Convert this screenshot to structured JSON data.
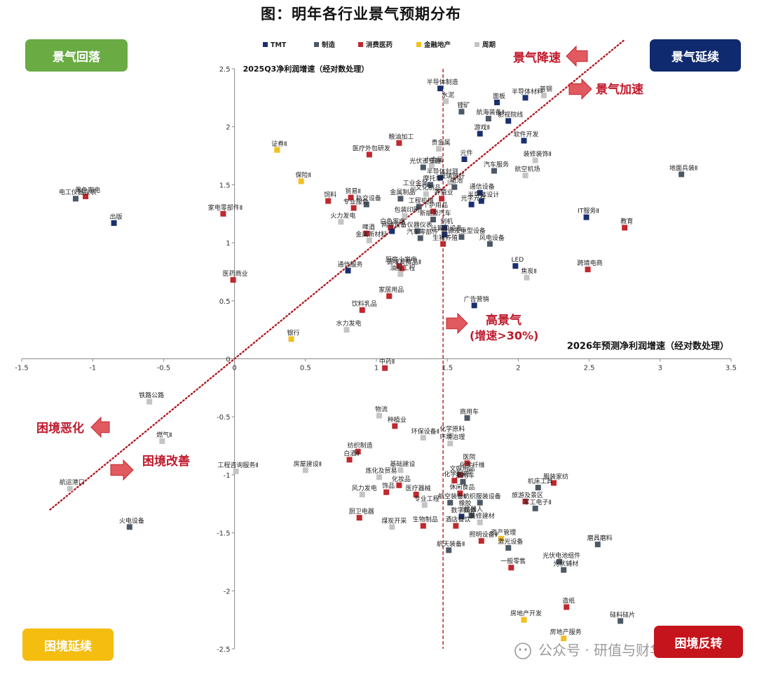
{
  "page_title": "图：明年各行业景气预期分布",
  "quadrants": {
    "top_left": "景气回落",
    "top_right": "景气延续",
    "bottom_left": "困境延续",
    "bottom_right": "困境反转"
  },
  "annotations": {
    "jingqi_jiangsu": "景气降速",
    "jingqi_jiasu": "景气加速",
    "gao_jingqi": "高景气",
    "gao_jingqi_sub": "(增速>30%)",
    "kunjing_ehua": "困境恶化",
    "kunjing_gaishan": "困境改善"
  },
  "watermark": "公众号 · 研值与财华",
  "colors": {
    "TMT": "#1a2f6e",
    "制造": "#4d5866",
    "消费医药": "#c0282e",
    "金融地产": "#f2bf1f",
    "周期": "#c4c4c4",
    "badge_green": "#6aab44",
    "badge_navy": "#0f2a6e",
    "badge_yellow": "#f5bd10",
    "badge_red": "#c5141b",
    "trend_line": "#b11c24"
  },
  "chart_data": {
    "type": "scatter",
    "xlabel": "2026年预测净利润增速（经对数处理）",
    "ylabel": "2025Q3净利润增速（经对数处理）",
    "xlim": [
      -1.5,
      3.5
    ],
    "ylim": [
      -2.5,
      2.5
    ],
    "xticks": [
      "-1.5",
      "-1",
      "-0.5",
      "0",
      "0.5",
      "1",
      "1.5",
      "2",
      "2.5",
      "3",
      "3.5"
    ],
    "yticks": [
      "2.5",
      "2",
      "1.5",
      "1",
      "0.5",
      "0",
      "-0.5",
      "-1",
      "-1.5",
      "-2",
      "-2.5"
    ],
    "legend": [
      "TMT",
      "制造",
      "消费医药",
      "金融地产",
      "周期"
    ],
    "legend_position": "top",
    "reference_line_x": 1.47,
    "diagonal": [
      [
        -1.3,
        -1.3
      ],
      [
        2.75,
        2.75
      ]
    ],
    "points": [
      {
        "name": "半导体制造",
        "x": 1.45,
        "y": 2.33,
        "g": "TMT"
      },
      {
        "name": "水泥",
        "x": 1.49,
        "y": 2.22,
        "g": "周期"
      },
      {
        "name": "面板",
        "x": 1.85,
        "y": 2.21,
        "g": "TMT"
      },
      {
        "name": "半导体材料",
        "x": 2.05,
        "y": 2.25,
        "g": "TMT"
      },
      {
        "name": "普钢",
        "x": 2.18,
        "y": 2.27,
        "g": "周期"
      },
      {
        "name": "锂矿",
        "x": 1.6,
        "y": 2.13,
        "g": "制造"
      },
      {
        "name": "航海装备Ⅱ",
        "x": 1.79,
        "y": 2.07,
        "g": "制造"
      },
      {
        "name": "影视院线",
        "x": 1.93,
        "y": 2.05,
        "g": "TMT"
      },
      {
        "name": "游戏Ⅱ",
        "x": 1.73,
        "y": 1.94,
        "g": "TMT"
      },
      {
        "name": "粮油加工",
        "x": 1.16,
        "y": 1.86,
        "g": "消费医药"
      },
      {
        "name": "证券Ⅱ",
        "x": 0.3,
        "y": 1.8,
        "g": "金融地产"
      },
      {
        "name": "贵金属",
        "x": 1.44,
        "y": 1.81,
        "g": "周期"
      },
      {
        "name": "医疗外包研发",
        "x": 0.95,
        "y": 1.76,
        "g": "消费医药"
      },
      {
        "name": "软件开发",
        "x": 2.04,
        "y": 1.88,
        "g": "TMT"
      },
      {
        "name": "元件",
        "x": 1.62,
        "y": 1.72,
        "g": "TMT"
      },
      {
        "name": "装修装饰Ⅱ",
        "x": 2.12,
        "y": 1.71,
        "g": "周期"
      },
      {
        "name": "光伏逆变器",
        "x": 1.33,
        "y": 1.65,
        "g": "制造"
      },
      {
        "name": "小金属",
        "x": 1.39,
        "y": 1.66,
        "g": "周期"
      },
      {
        "name": "汽车服务",
        "x": 1.83,
        "y": 1.62,
        "g": "制造"
      },
      {
        "name": "地面兵装Ⅱ",
        "x": 3.15,
        "y": 1.59,
        "g": "制造"
      },
      {
        "name": "保险Ⅱ",
        "x": 0.47,
        "y": 1.53,
        "g": "金融地产"
      },
      {
        "name": "半导体封测",
        "x": 1.45,
        "y": 1.56,
        "g": "TMT"
      },
      {
        "name": "航空机场",
        "x": 2.05,
        "y": 1.58,
        "g": "周期"
      },
      {
        "name": "摩托车",
        "x": 1.38,
        "y": 1.5,
        "g": "制造"
      },
      {
        "name": "玻璃玻纤",
        "x": 1.52,
        "y": 1.52,
        "g": "周期"
      },
      {
        "name": "工业金属",
        "x": 1.26,
        "y": 1.46,
        "g": "周期"
      },
      {
        "name": "电池",
        "x": 1.55,
        "y": 1.48,
        "g": "制造"
      },
      {
        "name": "黑色家电",
        "x": -1.05,
        "y": 1.4,
        "g": "消费医药"
      },
      {
        "name": "电工仪器仪表",
        "x": -1.12,
        "y": 1.38,
        "g": "制造"
      },
      {
        "name": "通信设备",
        "x": 1.73,
        "y": 1.43,
        "g": "TMT"
      },
      {
        "name": "金属制品",
        "x": 1.17,
        "y": 1.38,
        "g": "制造"
      },
      {
        "name": "文化制品",
        "x": 1.35,
        "y": 1.42,
        "g": "周期"
      },
      {
        "name": "贸易Ⅱ",
        "x": 0.82,
        "y": 1.39,
        "g": "消费医药"
      },
      {
        "name": "饲料",
        "x": 0.66,
        "y": 1.36,
        "g": "消费医药"
      },
      {
        "name": "半导体设计",
        "x": 1.74,
        "y": 1.36,
        "g": "TMT"
      },
      {
        "name": "养殖业",
        "x": 1.46,
        "y": 1.38,
        "g": "消费医药"
      },
      {
        "name": "家电零部件Ⅱ",
        "x": -0.08,
        "y": 1.25,
        "g": "消费医药"
      },
      {
        "name": "IT服务Ⅱ",
        "x": 2.48,
        "y": 1.22,
        "g": "TMT"
      },
      {
        "name": "轨交设备",
        "x": 0.93,
        "y": 1.33,
        "g": "制造"
      },
      {
        "name": "专业服务",
        "x": 0.84,
        "y": 1.3,
        "g": "消费医药"
      },
      {
        "name": "工程机械",
        "x": 1.3,
        "y": 1.31,
        "g": "制造"
      },
      {
        "name": "光学元件",
        "x": 1.67,
        "y": 1.33,
        "g": "TMT"
      },
      {
        "name": "出版",
        "x": -0.85,
        "y": 1.17,
        "g": "TMT"
      },
      {
        "name": "教育",
        "x": 2.75,
        "y": 1.13,
        "g": "消费医药"
      },
      {
        "name": "个护用品",
        "x": 1.4,
        "y": 1.27,
        "g": "消费医药"
      },
      {
        "name": "包装印刷",
        "x": 1.2,
        "y": 1.23,
        "g": "周期"
      },
      {
        "name": "新能源汽车",
        "x": 1.4,
        "y": 1.2,
        "g": "制造"
      },
      {
        "name": "火力发电",
        "x": 0.75,
        "y": 1.18,
        "g": "周期"
      },
      {
        "name": "白色家电",
        "x": 1.1,
        "y": 1.13,
        "g": "消费医药"
      },
      {
        "name": "刻机",
        "x": 1.48,
        "y": 1.13,
        "g": "TMT"
      },
      {
        "name": "啤酒",
        "x": 0.93,
        "y": 1.08,
        "g": "消费医药"
      },
      {
        "name": "网络设备",
        "x": 1.11,
        "y": 1.1,
        "g": "TMT"
      },
      {
        "name": "仪器仪表",
        "x": 1.29,
        "y": 1.1,
        "g": "制造"
      },
      {
        "name": "计算机设备",
        "x": 1.48,
        "y": 1.07,
        "g": "TMT"
      },
      {
        "name": "金属新材料",
        "x": 0.95,
        "y": 1.02,
        "g": "周期"
      },
      {
        "name": "汽车零部件",
        "x": 1.31,
        "y": 1.04,
        "g": "制造"
      },
      {
        "name": "能源及重型设备",
        "x": 1.6,
        "y": 1.05,
        "g": "制造"
      },
      {
        "name": "风电设备",
        "x": 1.8,
        "y": 0.99,
        "g": "制造"
      },
      {
        "name": "生猪养殖",
        "x": 1.47,
        "y": 0.99,
        "g": "消费医药"
      },
      {
        "name": "厨房小家电",
        "x": 1.16,
        "y": 0.8,
        "g": "消费医药"
      },
      {
        "name": "调味发酵品Ⅱ",
        "x": 1.18,
        "y": 0.78,
        "g": "消费医药"
      },
      {
        "name": "LED",
        "x": 1.98,
        "y": 0.8,
        "g": "TMT"
      },
      {
        "name": "跨境电商",
        "x": 2.49,
        "y": 0.77,
        "g": "消费医药"
      },
      {
        "name": "通信服务",
        "x": 0.8,
        "y": 0.76,
        "g": "TMT"
      },
      {
        "name": "焦炭Ⅱ",
        "x": 2.06,
        "y": 0.7,
        "g": "周期"
      },
      {
        "name": "医药商业",
        "x": -0.01,
        "y": 0.68,
        "g": "消费医药"
      },
      {
        "name": "油服工程",
        "x": 1.17,
        "y": 0.73,
        "g": "周期"
      },
      {
        "name": "家居用品",
        "x": 1.09,
        "y": 0.54,
        "g": "消费医药"
      },
      {
        "name": "广告营销",
        "x": 1.69,
        "y": 0.46,
        "g": "TMT"
      },
      {
        "name": "饮料乳品",
        "x": 0.9,
        "y": 0.42,
        "g": "消费医药"
      },
      {
        "name": "水力发电",
        "x": 0.79,
        "y": 0.25,
        "g": "周期"
      },
      {
        "name": "银行",
        "x": 0.4,
        "y": 0.17,
        "g": "金融地产"
      },
      {
        "name": "中药Ⅱ",
        "x": 1.06,
        "y": -0.08,
        "g": "消费医药"
      },
      {
        "name": "铁路公路",
        "x": -0.6,
        "y": -0.37,
        "g": "周期"
      },
      {
        "name": "物流",
        "x": 1.02,
        "y": -0.49,
        "g": "周期"
      },
      {
        "name": "商用车",
        "x": 1.64,
        "y": -0.51,
        "g": "制造"
      },
      {
        "name": "种植业",
        "x": 1.13,
        "y": -0.58,
        "g": "消费医药"
      },
      {
        "name": "环保设备Ⅱ",
        "x": 1.33,
        "y": -0.68,
        "g": "周期"
      },
      {
        "name": "化学原料",
        "x": 1.52,
        "y": -0.66,
        "g": "周期"
      },
      {
        "name": "燃气Ⅱ",
        "x": -0.51,
        "y": -0.71,
        "g": "周期"
      },
      {
        "name": "环境治理",
        "x": 1.52,
        "y": -0.73,
        "g": "周期"
      },
      {
        "name": "纺织制造",
        "x": 0.87,
        "y": -0.8,
        "g": "消费医药"
      },
      {
        "name": "白酒Ⅱ",
        "x": 0.81,
        "y": -0.87,
        "g": "消费医药"
      },
      {
        "name": "医院",
        "x": 1.64,
        "y": -0.9,
        "g": "消费医药"
      },
      {
        "name": "工程咨询服务Ⅱ",
        "x": 0.01,
        "y": -0.97,
        "g": "周期"
      },
      {
        "name": "房屋建设Ⅱ",
        "x": 0.5,
        "y": -0.96,
        "g": "周期"
      },
      {
        "name": "基础建设",
        "x": 1.17,
        "y": -0.96,
        "g": "周期"
      },
      {
        "name": "化学纤维",
        "x": 1.66,
        "y": -0.97,
        "g": "周期"
      },
      {
        "name": "文娱用品",
        "x": 1.59,
        "y": -1.0,
        "g": "消费医药"
      },
      {
        "name": "炼化及贸易",
        "x": 1.02,
        "y": -1.02,
        "g": "周期"
      },
      {
        "name": "化学制药",
        "x": 1.55,
        "y": -1.05,
        "g": "消费医药"
      },
      {
        "name": "乘用车",
        "x": 1.61,
        "y": -1.06,
        "g": "制造"
      },
      {
        "name": "服装家纺",
        "x": 2.25,
        "y": -1.07,
        "g": "消费医药"
      },
      {
        "name": "航运港口",
        "x": -1.16,
        "y": -1.12,
        "g": "周期"
      },
      {
        "name": "化妆品",
        "x": 1.16,
        "y": -1.09,
        "g": "消费医药"
      },
      {
        "name": "机床工具",
        "x": 2.14,
        "y": -1.11,
        "g": "制造"
      },
      {
        "name": "饰品",
        "x": 1.07,
        "y": -1.15,
        "g": "消费医药"
      },
      {
        "name": "风力发电",
        "x": 0.9,
        "y": -1.17,
        "g": "周期"
      },
      {
        "name": "医疗器械",
        "x": 1.28,
        "y": -1.17,
        "g": "消费医药"
      },
      {
        "name": "休闲食品",
        "x": 1.59,
        "y": -1.16,
        "g": "消费医药"
      },
      {
        "name": "旅游及景区",
        "x": 2.05,
        "y": -1.23,
        "g": "消费医药"
      },
      {
        "name": "纺织服装设备",
        "x": 1.73,
        "y": -1.24,
        "g": "制造"
      },
      {
        "name": "专业工程",
        "x": 1.34,
        "y": -1.26,
        "g": "周期"
      },
      {
        "name": "航空装备Ⅱ",
        "x": 1.52,
        "y": -1.24,
        "g": "制造"
      },
      {
        "name": "军工电子Ⅱ",
        "x": 2.12,
        "y": -1.29,
        "g": "制造"
      },
      {
        "name": "橡胶",
        "x": 1.61,
        "y": -1.3,
        "g": "周期"
      },
      {
        "name": "机器人",
        "x": 1.67,
        "y": -1.35,
        "g": "制造"
      },
      {
        "name": "数字媒体",
        "x": 1.6,
        "y": -1.36,
        "g": "TMT"
      },
      {
        "name": "厨卫电器",
        "x": 0.88,
        "y": -1.37,
        "g": "消费医药"
      },
      {
        "name": "装修建材",
        "x": 1.73,
        "y": -1.41,
        "g": "周期"
      },
      {
        "name": "煤炭开采",
        "x": 1.11,
        "y": -1.45,
        "g": "周期"
      },
      {
        "name": "火电设备",
        "x": -0.74,
        "y": -1.45,
        "g": "制造"
      },
      {
        "name": "生物制品",
        "x": 1.33,
        "y": -1.44,
        "g": "消费医药"
      },
      {
        "name": "酒店餐饮",
        "x": 1.56,
        "y": -1.44,
        "g": "消费医药"
      },
      {
        "name": "照明设备Ⅱ",
        "x": 1.74,
        "y": -1.57,
        "g": "消费医药"
      },
      {
        "name": "资产管理",
        "x": 1.88,
        "y": -1.55,
        "g": "金融地产"
      },
      {
        "name": "磨具磨料",
        "x": 2.56,
        "y": -1.6,
        "g": "制造"
      },
      {
        "name": "航天装备Ⅱ",
        "x": 1.51,
        "y": -1.65,
        "g": "制造"
      },
      {
        "name": "激光设备",
        "x": 1.93,
        "y": -1.63,
        "g": "制造"
      },
      {
        "name": "光伏电池组件",
        "x": 2.29,
        "y": -1.75,
        "g": "制造"
      },
      {
        "name": "一般零售",
        "x": 1.95,
        "y": -1.8,
        "g": "消费医药"
      },
      {
        "name": "光伏辅材",
        "x": 2.32,
        "y": -1.82,
        "g": "制造"
      },
      {
        "name": "造纸",
        "x": 2.34,
        "y": -2.14,
        "g": "消费医药"
      },
      {
        "name": "房地产开发",
        "x": 2.04,
        "y": -2.25,
        "g": "金融地产"
      },
      {
        "name": "硅料硅片",
        "x": 2.72,
        "y": -2.26,
        "g": "制造"
      },
      {
        "name": "房地产服务",
        "x": 2.32,
        "y": -2.41,
        "g": "金融地产"
      }
    ]
  }
}
